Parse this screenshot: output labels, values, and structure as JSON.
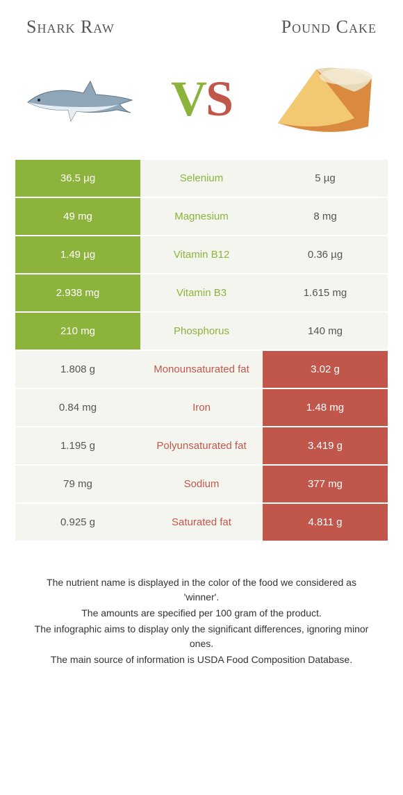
{
  "food_a": {
    "name": "Shark Raw",
    "color": "#8cb43c"
  },
  "food_b": {
    "name": "Pound Cake",
    "color": "#c1574b"
  },
  "neutral_bg": "#f5f5f0",
  "rows": [
    {
      "nutrient": "Selenium",
      "a": "36.5 µg",
      "b": "5 µg",
      "winner": "a"
    },
    {
      "nutrient": "Magnesium",
      "a": "49 mg",
      "b": "8 mg",
      "winner": "a"
    },
    {
      "nutrient": "Vitamin B12",
      "a": "1.49 µg",
      "b": "0.36 µg",
      "winner": "a"
    },
    {
      "nutrient": "Vitamin B3",
      "a": "2.938 mg",
      "b": "1.615 mg",
      "winner": "a"
    },
    {
      "nutrient": "Phosphorus",
      "a": "210 mg",
      "b": "140 mg",
      "winner": "a"
    },
    {
      "nutrient": "Monounsaturated fat",
      "a": "1.808 g",
      "b": "3.02 g",
      "winner": "b"
    },
    {
      "nutrient": "Iron",
      "a": "0.84 mg",
      "b": "1.48 mg",
      "winner": "b"
    },
    {
      "nutrient": "Polyunsaturated fat",
      "a": "1.195 g",
      "b": "3.419 g",
      "winner": "b"
    },
    {
      "nutrient": "Sodium",
      "a": "79 mg",
      "b": "377 mg",
      "winner": "b"
    },
    {
      "nutrient": "Saturated fat",
      "a": "0.925 g",
      "b": "4.811 g",
      "winner": "b"
    }
  ],
  "footnotes": [
    "The nutrient name is displayed in the color of the food we considered as 'winner'.",
    "The amounts are specified per 100 gram of the product.",
    "The infographic aims to display only the significant differences, ignoring minor ones.",
    "The main source of information is USDA Food Composition Database."
  ]
}
